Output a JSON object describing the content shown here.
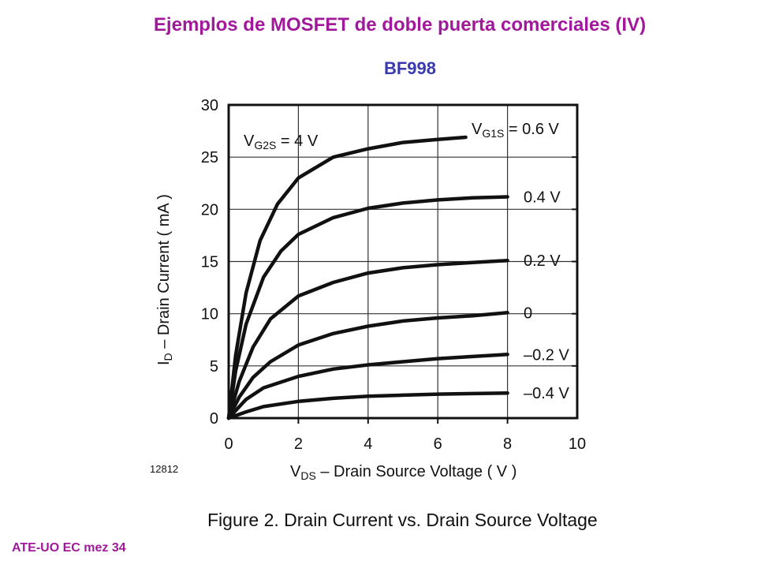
{
  "slide": {
    "title": "Ejemplos de MOSFET de doble puerta comerciales (IV)",
    "subtitle": "BF998",
    "footer": "ATE-UO EC mez 34"
  },
  "chart_data": {
    "type": "line",
    "xlabel": {
      "main": "V",
      "sub": "DS",
      "rest": " – Drain Source Voltage ( V )"
    },
    "ylabel": {
      "main": "I",
      "sub": "D",
      "rest": " – Drain Current ( mA )"
    },
    "xlim": [
      0,
      10
    ],
    "ylim": [
      0,
      30
    ],
    "xticks": [
      0,
      2,
      4,
      6,
      8,
      10
    ],
    "yticks": [
      0,
      5,
      10,
      15,
      20,
      25,
      30
    ],
    "grid": true,
    "annotation": {
      "main": "V",
      "sub": "G2S",
      "rest": " = 4 V"
    },
    "figure_id": "12812",
    "caption": "Figure 2. Drain Current vs. Drain Source Voltage",
    "series": [
      {
        "name": "V_G1S = 0.6 V",
        "label_parts": {
          "main": "V",
          "sub": "G1S",
          "rest": " = 0.6 V"
        },
        "x": [
          0,
          0.2,
          0.5,
          0.9,
          1.4,
          2,
          3,
          4,
          5,
          6,
          6.8
        ],
        "y": [
          0,
          6,
          12,
          17,
          20.5,
          23,
          25,
          25.8,
          26.4,
          26.7,
          26.9
        ]
      },
      {
        "name": "0.4 V",
        "label_parts": {
          "main": "0.4 V",
          "sub": "",
          "rest": ""
        },
        "x": [
          0,
          0.2,
          0.5,
          1,
          1.5,
          2,
          3,
          4,
          5,
          6,
          7,
          8
        ],
        "y": [
          0,
          4.5,
          9,
          13.5,
          16,
          17.6,
          19.2,
          20.1,
          20.6,
          20.9,
          21.1,
          21.2
        ]
      },
      {
        "name": "0.2 V",
        "label_parts": {
          "main": "0.2 V",
          "sub": "",
          "rest": ""
        },
        "x": [
          0,
          0.3,
          0.7,
          1.2,
          2,
          3,
          4,
          5,
          6,
          7,
          8
        ],
        "y": [
          0,
          3.5,
          6.8,
          9.5,
          11.7,
          13,
          13.9,
          14.4,
          14.7,
          14.9,
          15.1
        ]
      },
      {
        "name": "0",
        "label_parts": {
          "main": "0",
          "sub": "",
          "rest": ""
        },
        "x": [
          0,
          0.3,
          0.7,
          1.2,
          2,
          3,
          4,
          5,
          6,
          7,
          8
        ],
        "y": [
          0,
          2,
          3.9,
          5.4,
          7,
          8.1,
          8.8,
          9.3,
          9.6,
          9.8,
          10.1
        ]
      },
      {
        "name": "–0.2 V",
        "label_parts": {
          "main": "–0.2 V",
          "sub": "",
          "rest": ""
        },
        "x": [
          0,
          0.5,
          1,
          2,
          3,
          4,
          5,
          6,
          7,
          8
        ],
        "y": [
          0,
          1.8,
          2.9,
          4,
          4.7,
          5.1,
          5.4,
          5.7,
          5.9,
          6.1
        ]
      },
      {
        "name": "–0.4 V",
        "label_parts": {
          "main": "–0.4 V",
          "sub": "",
          "rest": ""
        },
        "x": [
          0,
          0.5,
          1,
          2,
          3,
          4,
          5,
          6,
          7,
          8
        ],
        "y": [
          0,
          0.6,
          1.1,
          1.6,
          1.9,
          2.1,
          2.2,
          2.3,
          2.35,
          2.4
        ]
      }
    ]
  }
}
